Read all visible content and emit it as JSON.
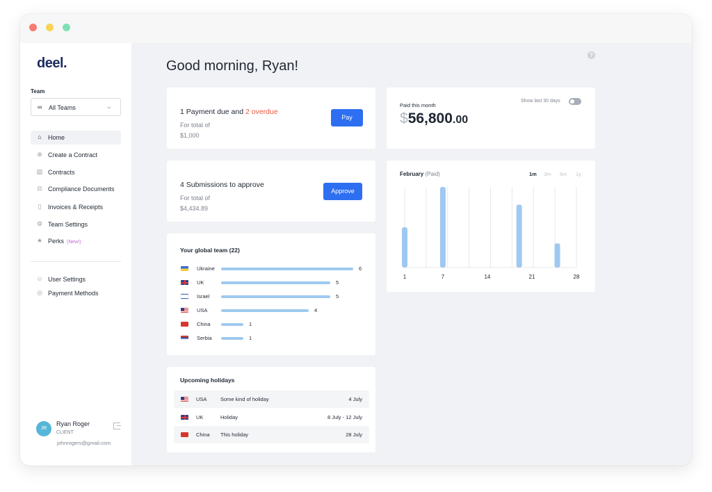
{
  "window": {
    "traffic_lights": [
      "close",
      "minimize",
      "maximize"
    ]
  },
  "sidebar": {
    "logo": "deel.",
    "team_label": "Team",
    "team_select": {
      "icon": "infinity-icon",
      "value": "All Teams"
    },
    "nav": [
      {
        "label": "Home",
        "icon": "home-icon",
        "active": true
      },
      {
        "label": "Create a Contract",
        "icon": "plus-circle-icon"
      },
      {
        "label": "Contracts",
        "icon": "document-icon"
      },
      {
        "label": "Compliance Documents",
        "icon": "compliance-icon"
      },
      {
        "label": "Invoices & Receipts",
        "icon": "invoice-icon"
      },
      {
        "label": "Team Settings",
        "icon": "gear-icon"
      },
      {
        "label": "Perks",
        "icon": "star-icon",
        "badge": "(New!)"
      }
    ],
    "secondary_nav": [
      {
        "label": "User Settings",
        "icon": "user-icon"
      },
      {
        "label": "Payment Methods",
        "icon": "payment-icon"
      }
    ],
    "user": {
      "initials": "JR",
      "name": "Ryan Roger",
      "role": "CLIENT",
      "email": "johnrogers@gmail.com"
    }
  },
  "main": {
    "greeting": "Good morning, Ryan!",
    "payment_card": {
      "title_prefix": "1 Payment due and ",
      "overdue": "2 overdue",
      "subtitle": "For total of",
      "amount": "$1,000",
      "button": "Pay"
    },
    "submissions_card": {
      "title": "4 Submissions to approve",
      "subtitle": "For total of",
      "amount": "$4,434.89",
      "button": "Approve"
    },
    "paid_card": {
      "label": "Paid this month",
      "toggle_label": "Show last 30 days",
      "toggle_on": false,
      "currency": "$",
      "amount_whole": "56,800",
      "amount_cents": ".00"
    },
    "global_team": {
      "title": "Your global team (22)",
      "countries": [
        {
          "name": "Ukraine",
          "count": "6",
          "flag": "ukraine-flag-icon"
        },
        {
          "name": "UK",
          "count": "5",
          "flag": "uk-flag-icon"
        },
        {
          "name": "Israel",
          "count": "5",
          "flag": "israel-flag-icon"
        },
        {
          "name": "USA",
          "count": "4",
          "flag": "usa-flag-icon"
        },
        {
          "name": "China",
          "count": "1",
          "flag": "china-flag-icon"
        },
        {
          "name": "Serbia",
          "count": "1",
          "flag": "serbia-flag-icon"
        }
      ]
    },
    "holidays": {
      "title": "Upcoming holidays",
      "rows": [
        {
          "country": "USA",
          "name": "Some kind of holiday",
          "date": "4 July",
          "flag": "usa-flag-icon"
        },
        {
          "country": "UK",
          "name": "Holiday",
          "date": "8 July - 12 July",
          "flag": "uk-flag-icon"
        },
        {
          "country": "China",
          "name": "This holiday",
          "date": "28 July",
          "flag": "china-flag-icon"
        }
      ]
    },
    "chart_card": {
      "title": "February",
      "title_suffix": "(Paid)",
      "ranges": [
        "1m",
        "3m",
        "6m",
        "1y"
      ],
      "active_range": "1m"
    }
  },
  "colors": {
    "accent": "#2d6ff0",
    "overdue": "#e9573f",
    "bar": "#9fc9ef",
    "brand": "#1d2c60",
    "avatar": "#55b6d7"
  },
  "chart_data": {
    "type": "bar",
    "title": "February (Paid)",
    "x_tick_labels": [
      "1",
      "7",
      "14",
      "21",
      "28"
    ],
    "x": [
      1,
      7,
      19,
      25
    ],
    "values": [
      0.5,
      1.0,
      0.78,
      0.3
    ],
    "xlim": [
      1,
      28
    ],
    "ylim": [
      0,
      1
    ],
    "grid": "vertical"
  }
}
